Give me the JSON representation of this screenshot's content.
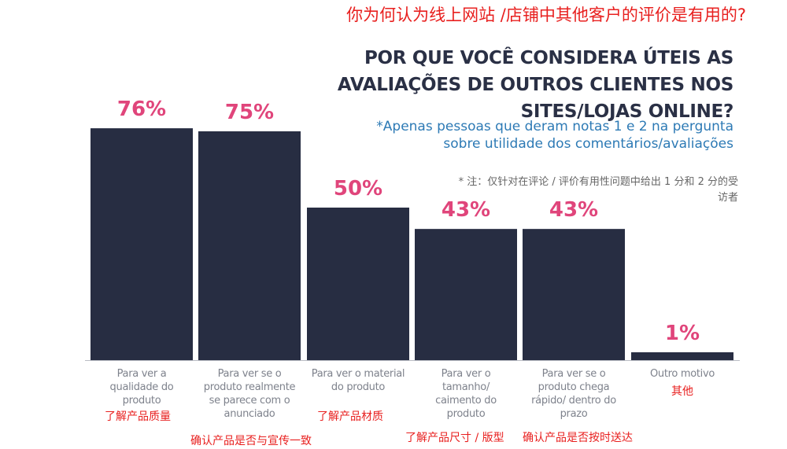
{
  "translation": {
    "title": "你为何认为线上网站 /店铺中其他客户的评价是有用的?",
    "note": "* 注：仅针对在评论 / 评价有用性问题中给出 1 分和 2 分的受访者",
    "categories_cn": [
      "了解产品质量",
      "确认产品是否与宣传一致",
      "了解产品材质",
      "了解产品尺寸 / 版型",
      "确认产品是否按时送达",
      "其他"
    ]
  },
  "chart_data": {
    "type": "bar",
    "title": "POR QUE VOCÊ CONSIDERA ÚTEIS AS AVALIAÇÕES DE OUTROS CLIENTES NOS SITES/LOJAS ONLINE?",
    "subtitle": "*Apenas pessoas que deram notas 1 e 2 na pergunta sobre utilidade dos comentários/avaliações",
    "categories": [
      "Para ver a qualidade do produto",
      "Para ver se o produto realmente se parece com o anunciado",
      "Para ver o material do produto",
      "Para ver o tamanho/ caimento do produto",
      "Para ver se o produto chega rápido/ dentro do prazo",
      "Outro motivo"
    ],
    "values": [
      76,
      75,
      50,
      43,
      43,
      1
    ],
    "value_labels": [
      "76%",
      "75%",
      "50%",
      "43%",
      "43%",
      "1%"
    ],
    "unit": "%",
    "ylim": [
      0,
      100
    ],
    "grid": false,
    "legend": "none",
    "colors": {
      "bar": "#272d42",
      "value_label": "#e0457b",
      "baseline": "#b9bcc4"
    }
  }
}
